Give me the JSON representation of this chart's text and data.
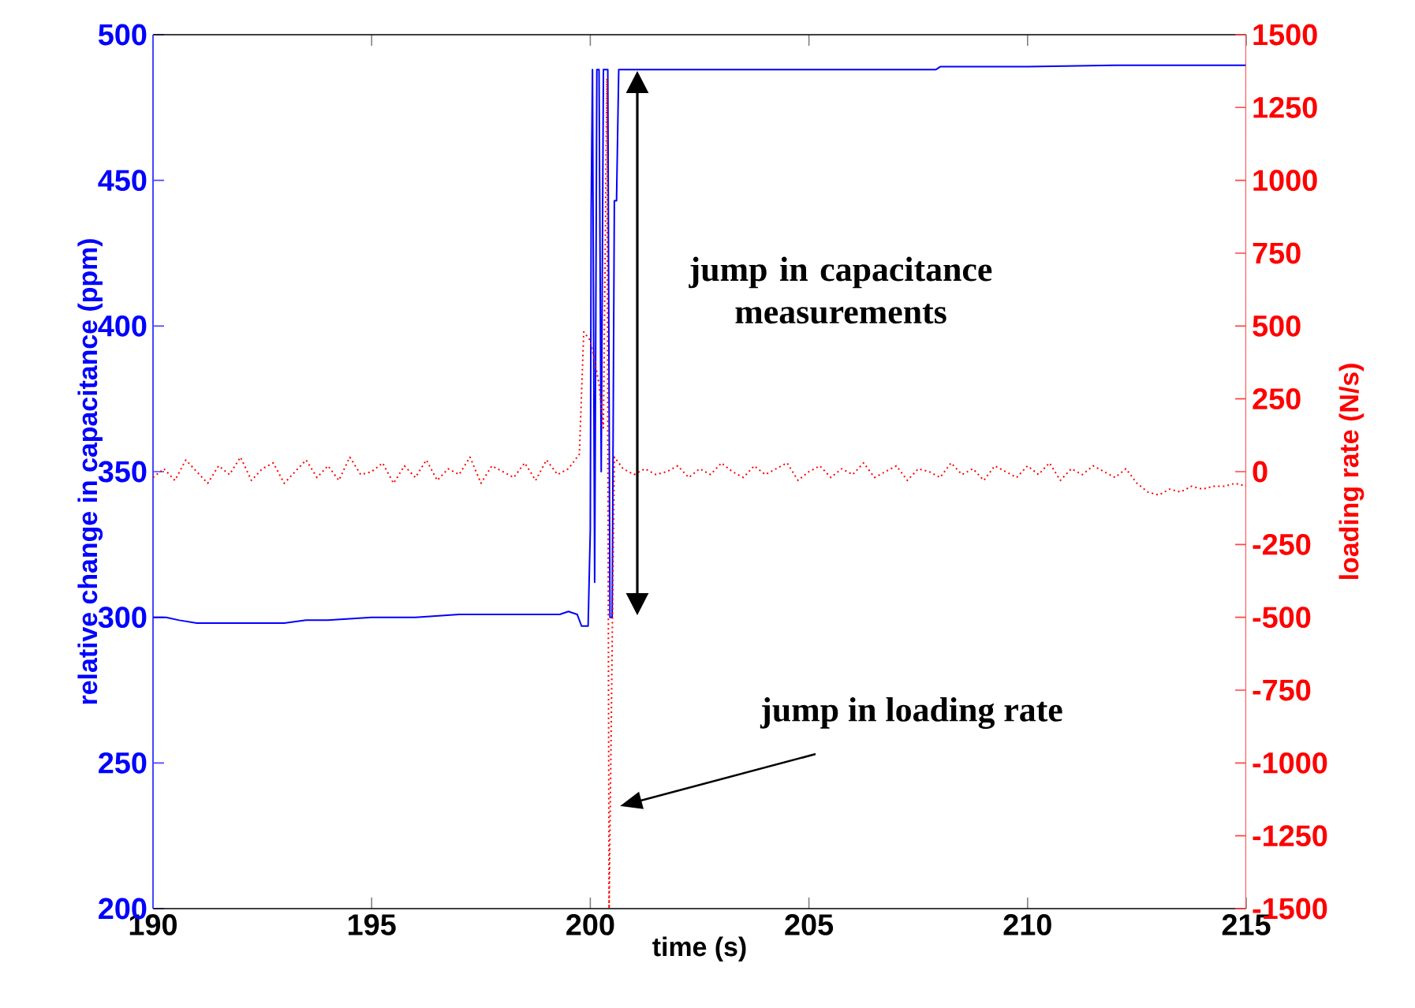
{
  "chart_data": {
    "type": "line",
    "xlabel": "time (s)",
    "ylabel": "relative change in capacitance (ppm)",
    "y2label": "loading rate (N/s)",
    "xlim": [
      190,
      215
    ],
    "xticks": [
      190,
      195,
      200,
      205,
      210,
      215
    ],
    "ylim": [
      200,
      500
    ],
    "yticks": [
      200,
      250,
      300,
      350,
      400,
      450,
      500
    ],
    "y2lim": [
      -1500,
      1500
    ],
    "y2ticks": [
      -1500,
      -1250,
      -1000,
      -750,
      -500,
      -250,
      0,
      250,
      500,
      750,
      1000,
      1250,
      1500
    ],
    "grid": false,
    "marker": "none",
    "series": [
      {
        "color": "#0000ff",
        "line_style": "solid",
        "x": [
          190,
          190.3,
          190.6,
          191,
          192,
          193,
          193.5,
          194,
          195,
          196,
          197,
          198,
          198.5,
          199,
          199.3,
          199.5,
          199.7,
          199.8,
          199.9,
          199.95,
          200.0,
          200.02,
          200.05,
          200.1,
          200.15,
          200.2,
          200.25,
          200.3,
          200.35,
          200.4,
          200.45,
          200.5,
          200.55,
          200.6,
          200.65,
          200.7,
          205,
          207.9,
          208,
          210,
          212,
          215
        ],
        "values": [
          300,
          300,
          299,
          298,
          298,
          298,
          299,
          299,
          300,
          300,
          301,
          301,
          301,
          301,
          301,
          302,
          301,
          297,
          297,
          297,
          330,
          440,
          488,
          312,
          488,
          488,
          350,
          488,
          488,
          488,
          300,
          300,
          443,
          443,
          488,
          488,
          488,
          488,
          489,
          489,
          489.5,
          489.5
        ]
      },
      {
        "color": "#ff0000",
        "axis": "y2",
        "line_style": "dotted",
        "x": [
          190,
          190.25,
          190.5,
          190.75,
          191,
          191.25,
          191.5,
          191.75,
          192,
          192.25,
          192.5,
          192.75,
          193,
          193.25,
          193.5,
          193.75,
          194,
          194.25,
          194.5,
          194.75,
          195,
          195.25,
          195.5,
          195.75,
          196,
          196.25,
          196.5,
          196.75,
          197,
          197.25,
          197.5,
          197.75,
          198,
          198.25,
          198.5,
          198.75,
          199,
          199.25,
          199.5,
          199.75,
          199.85,
          200,
          200.1,
          200.2,
          200.3,
          200.38,
          200.43,
          200.55,
          200.75,
          201,
          201.25,
          201.5,
          201.75,
          202,
          202.25,
          202.5,
          202.75,
          203,
          203.25,
          203.5,
          203.75,
          204,
          204.25,
          204.5,
          204.75,
          205,
          205.25,
          205.5,
          205.75,
          206,
          206.25,
          206.5,
          206.75,
          207,
          207.25,
          207.5,
          207.75,
          208,
          208.25,
          208.5,
          208.75,
          209,
          209.25,
          209.5,
          209.75,
          210,
          210.25,
          210.5,
          210.75,
          211,
          211.25,
          211.5,
          211.75,
          212,
          212.25,
          212.5,
          212.75,
          213,
          213.25,
          213.5,
          213.75,
          214,
          214.25,
          214.5,
          214.75,
          215
        ],
        "values": [
          -20,
          10,
          -30,
          40,
          0,
          -40,
          20,
          -10,
          50,
          -30,
          10,
          30,
          -40,
          0,
          40,
          -20,
          20,
          -30,
          50,
          -10,
          0,
          30,
          -40,
          20,
          -20,
          40,
          -30,
          10,
          -10,
          50,
          -40,
          20,
          0,
          -20,
          30,
          -30,
          40,
          -10,
          10,
          60,
          480,
          450,
          380,
          300,
          150,
          1350,
          -1500,
          50,
          10,
          -10,
          10,
          -10,
          0,
          20,
          -20,
          10,
          -10,
          30,
          0,
          -20,
          20,
          -10,
          10,
          30,
          -30,
          0,
          20,
          -20,
          10,
          -10,
          30,
          -20,
          0,
          20,
          -30,
          10,
          0,
          -20,
          30,
          -10,
          10,
          -30,
          20,
          0,
          -20,
          20,
          -10,
          30,
          -30,
          10,
          -10,
          20,
          0,
          -20,
          10,
          -40,
          -70,
          -80,
          -60,
          -70,
          -50,
          -60,
          -50,
          -50,
          -40,
          -50
        ]
      }
    ],
    "annotations": [
      "jump in capacitance measurements",
      "jump in loading rate"
    ]
  }
}
